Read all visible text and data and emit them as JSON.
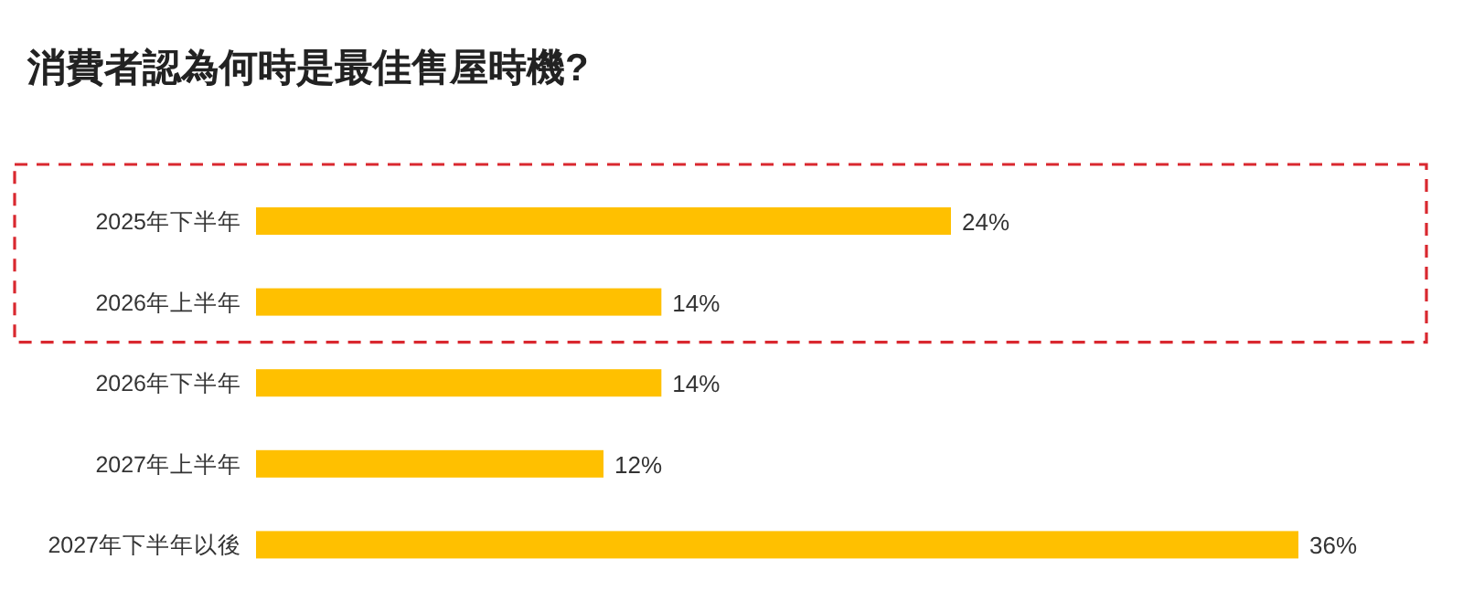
{
  "chart_data": {
    "type": "bar",
    "orientation": "horizontal",
    "title": "消費者認為何時是最佳售屋時機?",
    "categories": [
      "2025年下半年",
      "2026年上半年",
      "2026年下半年",
      "2027年上半年",
      "2027年下半年以後"
    ],
    "values": [
      24,
      14,
      14,
      12,
      36
    ],
    "color": "#ffc000",
    "value_labels": [
      "24%",
      "14%",
      "14%",
      "12%",
      "36%"
    ]
  }
}
